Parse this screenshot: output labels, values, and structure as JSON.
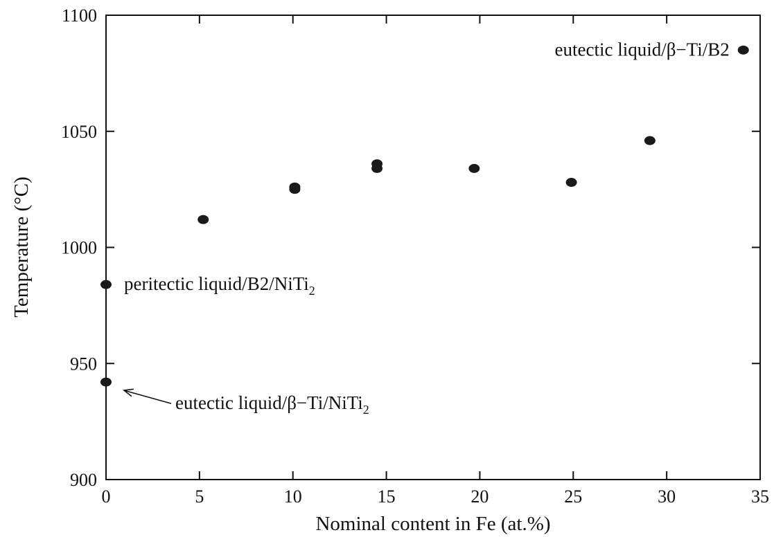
{
  "chart_data": {
    "type": "scatter",
    "xlabel": "Nominal content in Fe (at.%)",
    "ylabel": "Temperature (°C)",
    "xlim": [
      0,
      35
    ],
    "ylim": [
      900,
      1100
    ],
    "xticks": [
      0,
      5,
      10,
      15,
      20,
      25,
      30,
      35
    ],
    "yticks": [
      900,
      950,
      1000,
      1050,
      1100
    ],
    "xtick_labels": [
      "0",
      "5",
      "10",
      "15",
      "20",
      "25",
      "30",
      "35"
    ],
    "ytick_labels": [
      "900",
      "950",
      "1000",
      "1050",
      "1100"
    ],
    "grid": false,
    "marker_color": "#1a1a1a",
    "points": [
      {
        "x": 0,
        "y": 984
      },
      {
        "x": 0,
        "y": 942
      },
      {
        "x": 5.2,
        "y": 1012
      },
      {
        "x": 10.1,
        "y": 1025
      },
      {
        "x": 10.1,
        "y": 1026
      },
      {
        "x": 14.5,
        "y": 1034
      },
      {
        "x": 14.5,
        "y": 1036
      },
      {
        "x": 19.7,
        "y": 1034
      },
      {
        "x": 24.9,
        "y": 1028
      },
      {
        "x": 29.1,
        "y": 1046
      },
      {
        "x": 34.1,
        "y": 1085
      }
    ],
    "annotations": [
      {
        "main": "peritectic liquid/B2/NiTi",
        "sub": "2",
        "x": 0,
        "y": 984,
        "arrow": false
      },
      {
        "main": "eutectic liquid/β−Ti/NiTi",
        "sub": "2",
        "x": 0,
        "y": 942,
        "arrow": true
      },
      {
        "main": "eutectic liquid/β−Ti/B2",
        "sub": "",
        "x": 34.1,
        "y": 1085,
        "arrow": false
      }
    ]
  }
}
